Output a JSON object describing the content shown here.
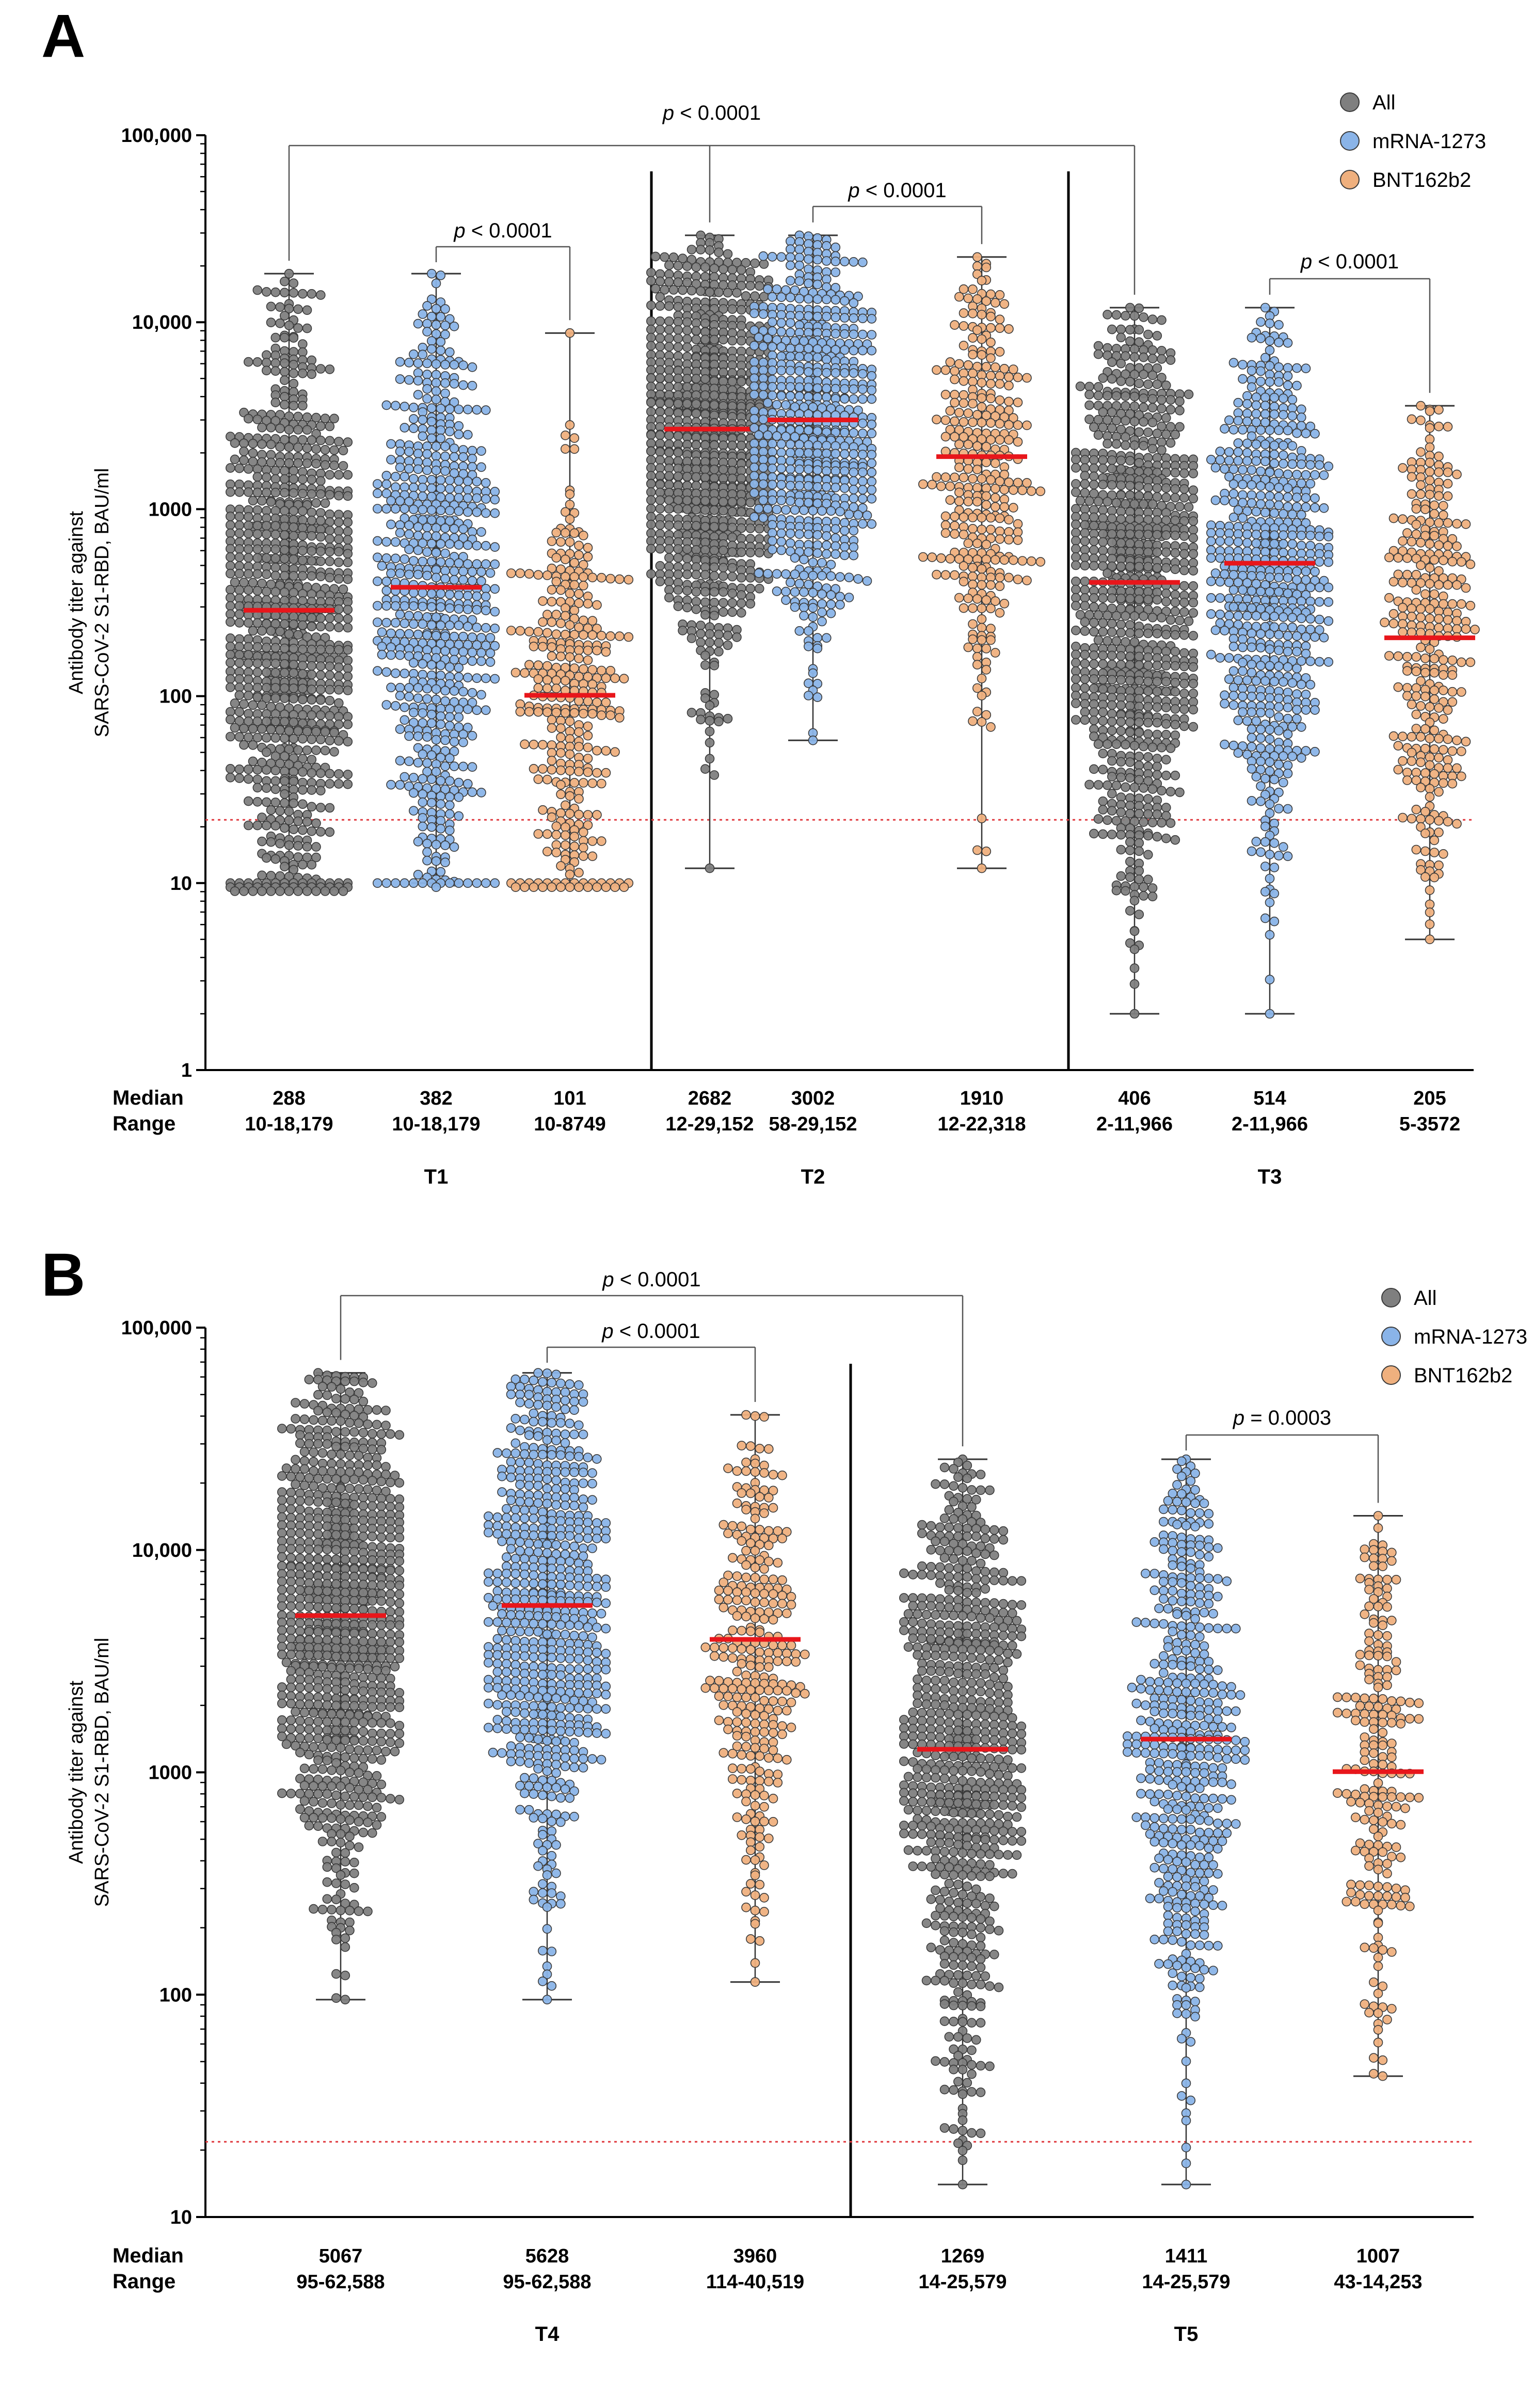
{
  "figure": {
    "colors": {
      "All": "#7f7f7f",
      "mRNA-1273": "#8ab4e8",
      "BNT162b2": "#efb07e",
      "median": "#e8161b",
      "threshold": "#e0393e",
      "axis": "#000000"
    }
  },
  "chart_data": [
    {
      "panel": "A",
      "type": "scatter",
      "subtype": "beeswarm",
      "ylabel_line1": "Antibody titer against",
      "ylabel_line2": "SARS-CoV-2 S1-RBD, BAU/ml",
      "yscale": "log",
      "ylim": [
        1,
        100000
      ],
      "yticks": [
        1,
        10,
        100,
        1000,
        10000,
        100000
      ],
      "ytick_labels": [
        "1",
        "10",
        "100",
        "1000",
        "10,000",
        "100,000"
      ],
      "threshold": 21.8,
      "row_labels": [
        "Median",
        "Range"
      ],
      "legend": [
        "All",
        "mRNA-1273",
        "BNT162b2"
      ],
      "legend_position": "top-right",
      "timepoints": [
        "T1",
        "T2",
        "T3"
      ],
      "groups": [
        {
          "timepoint": "T1",
          "series": "All",
          "median": 288,
          "min": 10,
          "max": 18179,
          "median_label": "288",
          "range_label": "10-18,179",
          "n": 900,
          "at_floor": 40
        },
        {
          "timepoint": "T1",
          "series": "mRNA-1273",
          "median": 382,
          "min": 10,
          "max": 18179,
          "median_label": "382",
          "range_label": "10-18,179",
          "n": 620,
          "at_floor": 14
        },
        {
          "timepoint": "T1",
          "series": "BNT162b2",
          "median": 101,
          "min": 10,
          "max": 8749,
          "median_label": "101",
          "range_label": "10-8749",
          "n": 320,
          "at_floor": 26
        },
        {
          "timepoint": "T2",
          "series": "All",
          "median": 2682,
          "min": 12,
          "max": 29152,
          "median_label": "2682",
          "range_label": "12-29,152",
          "n": 900,
          "at_floor": 0
        },
        {
          "timepoint": "T2",
          "series": "mRNA-1273",
          "median": 3002,
          "min": 58,
          "max": 29152,
          "median_label": "3002",
          "range_label": "58-29,152",
          "n": 620,
          "at_floor": 0
        },
        {
          "timepoint": "T2",
          "series": "BNT162b2",
          "median": 1910,
          "min": 12,
          "max": 22318,
          "median_label": "1910",
          "range_label": "12-22,318",
          "n": 320,
          "at_floor": 0
        },
        {
          "timepoint": "T3",
          "series": "All",
          "median": 406,
          "min": 2,
          "max": 11966,
          "median_label": "406",
          "range_label": "2-11,966",
          "n": 850,
          "at_floor": 0
        },
        {
          "timepoint": "T3",
          "series": "mRNA-1273",
          "median": 514,
          "min": 2,
          "max": 11966,
          "median_label": "514",
          "range_label": "2-11,966",
          "n": 600,
          "at_floor": 0
        },
        {
          "timepoint": "T3",
          "series": "BNT162b2",
          "median": 205,
          "min": 5,
          "max": 3572,
          "median_label": "205",
          "range_label": "5-3572",
          "n": 300,
          "at_floor": 0
        }
      ],
      "comparisons": [
        {
          "groups": [
            0,
            3,
            6
          ],
          "label": "p < 0.0001"
        },
        {
          "groups": [
            1,
            2
          ],
          "label": "p < 0.0001"
        },
        {
          "groups": [
            4,
            5
          ],
          "label": "p < 0.0001"
        },
        {
          "groups": [
            7,
            8
          ],
          "label": "p < 0.0001"
        }
      ]
    },
    {
      "panel": "B",
      "type": "scatter",
      "subtype": "beeswarm",
      "ylabel_line1": "Antibody titer against",
      "ylabel_line2": "SARS-CoV-2 S1-RBD, BAU/ml",
      "yscale": "log",
      "ylim": [
        10,
        100000
      ],
      "yticks": [
        10,
        100,
        1000,
        10000,
        100000
      ],
      "ytick_labels": [
        "10",
        "100",
        "1000",
        "10,000",
        "100,000"
      ],
      "threshold": 21.8,
      "row_labels": [
        "Median",
        "Range"
      ],
      "legend": [
        "All",
        "mRNA-1273",
        "BNT162b2"
      ],
      "legend_position": "top-right",
      "timepoints": [
        "T4",
        "T5"
      ],
      "groups": [
        {
          "timepoint": "T4",
          "series": "All",
          "median": 5067,
          "min": 95,
          "max": 62588,
          "median_label": "5067",
          "range_label": "95-62,588",
          "n": 880,
          "at_floor": 0
        },
        {
          "timepoint": "T4",
          "series": "mRNA-1273",
          "median": 5628,
          "min": 95,
          "max": 62588,
          "median_label": "5628",
          "range_label": "95-62,588",
          "n": 620,
          "at_floor": 0
        },
        {
          "timepoint": "T4",
          "series": "BNT162b2",
          "median": 3960,
          "min": 114,
          "max": 40519,
          "median_label": "3960",
          "range_label": "114-40,519",
          "n": 300,
          "at_floor": 0
        },
        {
          "timepoint": "T5",
          "series": "All",
          "median": 1269,
          "min": 14,
          "max": 25579,
          "median_label": "1269",
          "range_label": "14-25,579",
          "n": 720,
          "at_floor": 0
        },
        {
          "timepoint": "T5",
          "series": "mRNA-1273",
          "median": 1411,
          "min": 14,
          "max": 25579,
          "median_label": "1411",
          "range_label": "14-25,579",
          "n": 480,
          "at_floor": 0
        },
        {
          "timepoint": "T5",
          "series": "BNT162b2",
          "median": 1007,
          "min": 43,
          "max": 14253,
          "median_label": "1007",
          "range_label": "43-14,253",
          "n": 220,
          "at_floor": 0
        }
      ],
      "comparisons": [
        {
          "groups": [
            0,
            3
          ],
          "label": "p < 0.0001"
        },
        {
          "groups": [
            1,
            2
          ],
          "label": "p < 0.0001"
        },
        {
          "groups": [
            4,
            5
          ],
          "label": "p = 0.0003"
        }
      ]
    }
  ]
}
